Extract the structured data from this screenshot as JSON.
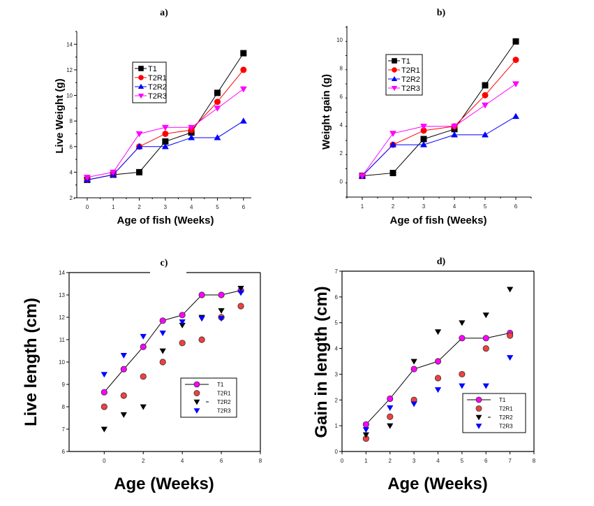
{
  "chart_data": [
    {
      "id": "a",
      "type": "line",
      "title": "a)",
      "xlabel": "Age of fish (Weeks)",
      "ylabel": "Live Weight (g)",
      "x": [
        0,
        1,
        2,
        3,
        4,
        5,
        6
      ],
      "xticks": [
        0,
        1,
        2,
        3,
        4,
        5,
        6
      ],
      "yticks": [
        2,
        4,
        6,
        8,
        10,
        12,
        14
      ],
      "xlim": [
        -0.4,
        6.3
      ],
      "ylim": [
        2,
        15
      ],
      "legend": "upper-left",
      "series": [
        {
          "name": "T1",
          "color": "#000000",
          "marker": "square",
          "values": [
            3.4,
            3.8,
            4.0,
            6.4,
            7.1,
            10.2,
            13.3
          ]
        },
        {
          "name": "T2R1",
          "color": "#ff0000",
          "marker": "circle",
          "values": [
            3.4,
            3.8,
            6.0,
            7.0,
            7.3,
            9.5,
            12.0
          ]
        },
        {
          "name": "T2R2",
          "color": "#0000ff",
          "marker": "triangle-up",
          "values": [
            3.4,
            3.8,
            6.0,
            6.0,
            6.7,
            6.7,
            8.0
          ]
        },
        {
          "name": "T2R3",
          "color": "#ff00ff",
          "marker": "triangle-down",
          "values": [
            3.6,
            4.0,
            7.0,
            7.5,
            7.5,
            9.0,
            10.5
          ]
        }
      ]
    },
    {
      "id": "b",
      "type": "line",
      "title": "b)",
      "xlabel": "Age of fish (Weeks)",
      "ylabel": "Weight gain (g)",
      "x": [
        1,
        2,
        3,
        4,
        5,
        6
      ],
      "xticks": [
        1,
        2,
        3,
        4,
        5,
        6
      ],
      "yticks": [
        0,
        2,
        4,
        6,
        8,
        10
      ],
      "xlim": [
        0.5,
        6.5
      ],
      "ylim": [
        -1.1,
        11
      ],
      "legend": "upper-left",
      "series": [
        {
          "name": "T1",
          "color": "#000000",
          "marker": "square",
          "values": [
            0.4,
            0.6,
            3.0,
            3.7,
            6.8,
            9.9
          ]
        },
        {
          "name": "T2R1",
          "color": "#ff0000",
          "marker": "circle",
          "values": [
            0.4,
            2.6,
            3.6,
            3.9,
            6.1,
            8.6
          ]
        },
        {
          "name": "T2R2",
          "color": "#0000ff",
          "marker": "triangle-up",
          "values": [
            0.4,
            2.6,
            2.6,
            3.3,
            3.3,
            4.6
          ]
        },
        {
          "name": "T2R3",
          "color": "#ff00ff",
          "marker": "triangle-down",
          "values": [
            0.4,
            3.4,
            3.9,
            3.9,
            5.4,
            6.9
          ]
        }
      ]
    },
    {
      "id": "c",
      "type": "scatter",
      "title": "c)",
      "xlabel": "Age (Weeks)",
      "ylabel": "Live length (cm)",
      "x": [
        0,
        1,
        2,
        3,
        4,
        5,
        6,
        7
      ],
      "xticks": [
        0,
        2,
        4,
        6,
        8
      ],
      "yticks": [
        6,
        7,
        8,
        9,
        10,
        11,
        12,
        13,
        14
      ],
      "xlim": [
        -1.8,
        8
      ],
      "ylim": [
        6,
        14
      ],
      "legend": "lower-right",
      "series": [
        {
          "name": "T1",
          "color": "#ff00ff",
          "marker": "circle",
          "line": true,
          "values": [
            8.65,
            9.68,
            10.68,
            11.85,
            12.1,
            13.0,
            13.0,
            13.2
          ]
        },
        {
          "name": "T2R1",
          "color": "#f04040",
          "marker": "circle",
          "line": false,
          "values": [
            8.0,
            8.5,
            9.35,
            10.0,
            10.85,
            11.0,
            12.0,
            12.5
          ]
        },
        {
          "name": "T2R2",
          "color": "#000000",
          "marker": "triangle-down",
          "line": false,
          "values": [
            7.0,
            7.65,
            8.0,
            10.5,
            11.65,
            12.0,
            12.3,
            13.3
          ]
        },
        {
          "name": "T2R3",
          "color": "#0000ff",
          "marker": "triangle-down",
          "line": false,
          "values": [
            9.45,
            10.3,
            11.15,
            11.3,
            11.8,
            11.95,
            11.95,
            13.1
          ]
        }
      ]
    },
    {
      "id": "d",
      "type": "scatter",
      "title": "d)",
      "xlabel": "Age (Weeks)",
      "ylabel": "Gain in length (cm)",
      "x": [
        1,
        2,
        3,
        4,
        5,
        6,
        7
      ],
      "xticks": [
        0,
        1,
        2,
        3,
        4,
        5,
        6,
        7,
        8
      ],
      "yticks": [
        0,
        1,
        2,
        3,
        4,
        5,
        6,
        7
      ],
      "xlim": [
        0,
        8
      ],
      "ylim": [
        0,
        7
      ],
      "legend": "lower-right",
      "series": [
        {
          "name": "T1",
          "color": "#ff00ff",
          "marker": "circle",
          "line": true,
          "values": [
            1.05,
            2.05,
            3.2,
            3.5,
            4.4,
            4.4,
            4.6
          ]
        },
        {
          "name": "T2R1",
          "color": "#f04040",
          "marker": "circle",
          "line": false,
          "values": [
            0.5,
            1.35,
            2.0,
            2.85,
            3.0,
            4.0,
            4.5
          ]
        },
        {
          "name": "T2R2",
          "color": "#000000",
          "marker": "triangle-down",
          "line": false,
          "values": [
            0.65,
            1.0,
            3.5,
            4.65,
            5.0,
            5.3,
            6.3
          ]
        },
        {
          "name": "T2R3",
          "color": "#0000ff",
          "marker": "triangle-down",
          "line": false,
          "values": [
            0.85,
            1.7,
            1.85,
            2.4,
            2.55,
            2.55,
            3.65
          ]
        }
      ]
    }
  ]
}
